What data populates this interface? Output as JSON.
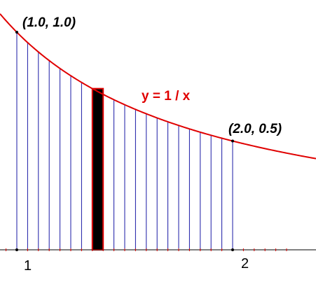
{
  "diagram": {
    "function_label": "y = 1 / x",
    "start_point_label": "(1.0, 1.0)",
    "end_point_label": "(2.0, 0.5)",
    "x_tick_labels": [
      "1",
      "2"
    ],
    "interval": [
      1.0,
      2.0
    ],
    "num_strips": 20,
    "highlighted_strip": 7,
    "colors": {
      "curve": "#e00000",
      "strips": "#1a1aa6",
      "highlight_fill": "#000000",
      "highlight_border": "#e00000",
      "axis": "#000000",
      "axis_tick": "#e00000"
    }
  }
}
